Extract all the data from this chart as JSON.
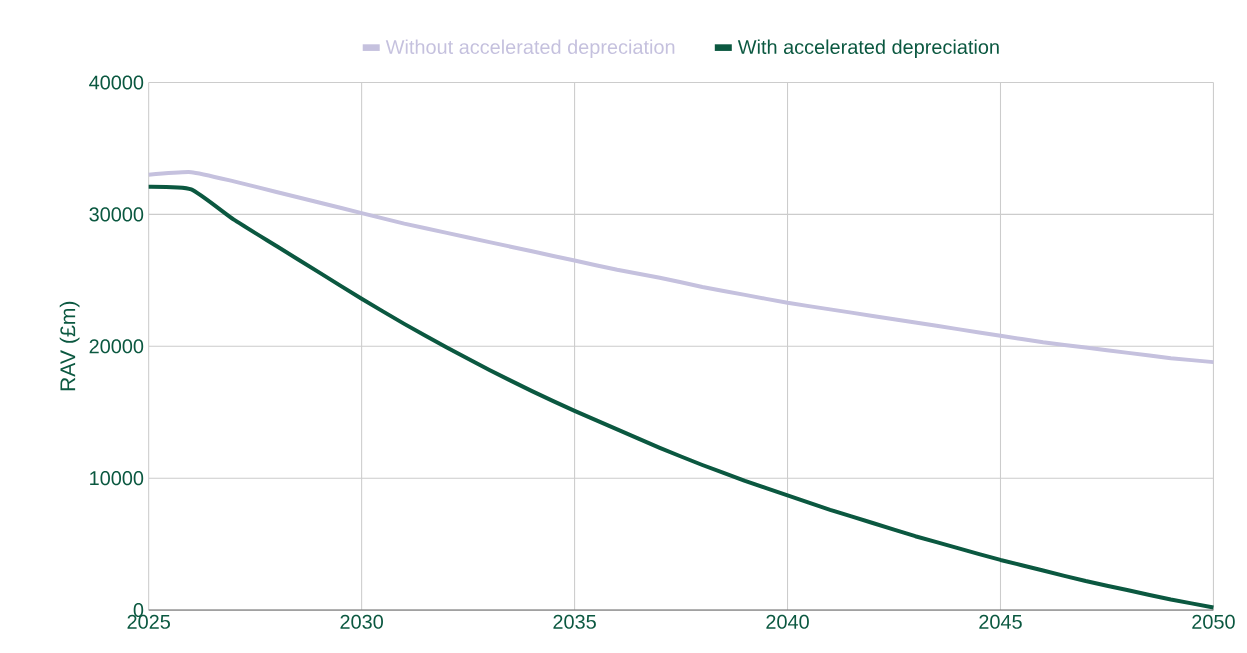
{
  "chart_data": {
    "type": "line",
    "ylabel": "RAV (£m)",
    "x": [
      2025,
      2026,
      2027,
      2028,
      2029,
      2030,
      2031,
      2032,
      2033,
      2034,
      2035,
      2036,
      2037,
      2038,
      2039,
      2040,
      2041,
      2042,
      2043,
      2044,
      2045,
      2046,
      2047,
      2048,
      2049,
      2050
    ],
    "series": [
      {
        "name": "Without accelerated depreciation",
        "color": "#c5c1de",
        "values": [
          33000,
          33200,
          32500,
          31700,
          30900,
          30100,
          29300,
          28600,
          27900,
          27200,
          26500,
          25800,
          25200,
          24500,
          23900,
          23300,
          22800,
          22300,
          21800,
          21300,
          20800,
          20300,
          19900,
          19500,
          19100,
          18800
        ]
      },
      {
        "name": "With accelerated depreciation",
        "color": "#0b5840",
        "values": [
          32100,
          31900,
          29600,
          27600,
          25600,
          23600,
          21700,
          19900,
          18200,
          16600,
          15100,
          13700,
          12300,
          11000,
          9800,
          8700,
          7600,
          6600,
          5600,
          4700,
          3800,
          3000,
          2200,
          1500,
          800,
          200
        ]
      }
    ],
    "xlim": [
      2025,
      2050
    ],
    "xticks": [
      2025,
      2030,
      2035,
      2040,
      2045,
      2050
    ],
    "ylim": [
      0,
      40000
    ],
    "yticks": [
      0,
      10000,
      20000,
      30000,
      40000
    ],
    "grid": true,
    "legend": "top",
    "marker": "none",
    "line_style": "solid"
  }
}
